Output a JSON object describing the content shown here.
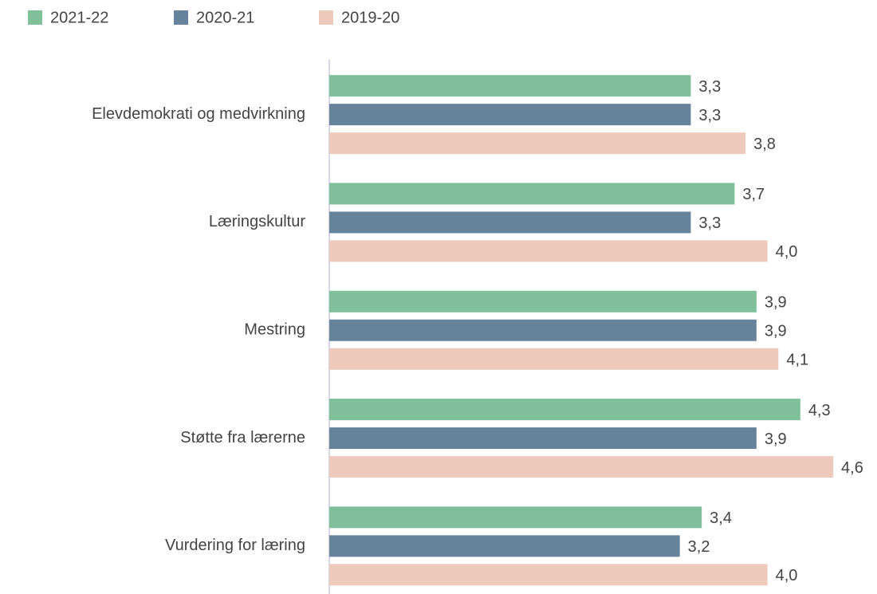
{
  "chart_data": {
    "type": "barh",
    "categories": [
      "Elevdemokrati og medvirkning",
      "Læringskultur",
      "Mestring",
      "Støtte fra lærerne",
      "Vurdering for læring"
    ],
    "series": [
      {
        "name": "2021-22",
        "color": "#7fbf9a",
        "values": [
          3.3,
          3.7,
          3.9,
          4.3,
          3.4
        ],
        "value_labels": [
          "3,3",
          "3,7",
          "3,9",
          "4,3",
          "3,4"
        ]
      },
      {
        "name": "2020-21",
        "color": "#67839b",
        "values": [
          3.3,
          3.3,
          3.9,
          3.9,
          3.2
        ],
        "value_labels": [
          "3,3",
          "3,3",
          "3,9",
          "3,9",
          "3,2"
        ]
      },
      {
        "name": "2019-20",
        "color": "#eecabd",
        "values": [
          3.8,
          4.0,
          4.1,
          4.6,
          4.0
        ],
        "value_labels": [
          "3,8",
          "4,0",
          "4,1",
          "4,6",
          "4,0"
        ]
      }
    ],
    "xlim": [
      0,
      5
    ],
    "legend": "top-left"
  }
}
